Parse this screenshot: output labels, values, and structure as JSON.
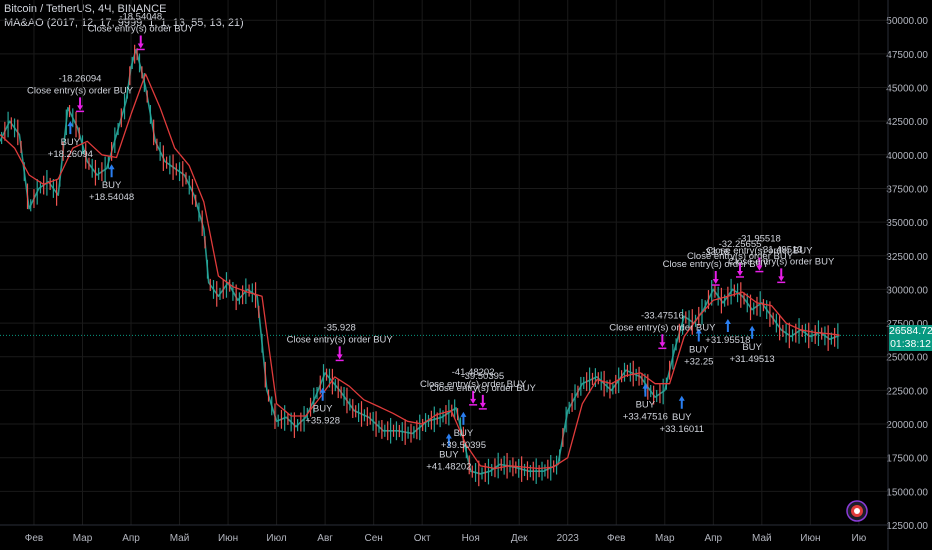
{
  "header": {
    "symbol": "Bitcoin / TetherUS, 4Ч, BINANCE",
    "indicator": "MA&AO (2017, 12, 17, 9999, 1, 1, 13, 55, 13, 21)"
  },
  "price_badge": {
    "price": "26584.72",
    "countdown": "01:38:12",
    "color": "#089981"
  },
  "colors": {
    "ma_line": "#e03b3b",
    "buy_arrow": "#2a7ef0",
    "close_arrow": "#e81ee8",
    "text": "#d1d4dc",
    "grid": "#1a1a1a"
  },
  "chart_data": {
    "type": "line",
    "title": "",
    "xlabel": "",
    "ylabel": "",
    "ylim": [
      12500,
      51500
    ],
    "y_ticks": [
      12500,
      15000,
      17500,
      20000,
      22500,
      25000,
      27500,
      30000,
      32500,
      35000,
      37500,
      40000,
      42500,
      45000,
      47500,
      50000
    ],
    "y_tick_labels": [
      "12500.00",
      "15000.00",
      "17500.00",
      "20000.00",
      "22500.00",
      "25000.00",
      "27500.00",
      "30000.00",
      "32500.00",
      "35000.00",
      "37500.00",
      "40000.00",
      "42500.00",
      "45000.00",
      "47500.00",
      "50000.00"
    ],
    "x_tick_labels": [
      "Фев",
      "Мар",
      "Апр",
      "Май",
      "Июн",
      "Июл",
      "Авг",
      "Сен",
      "Окт",
      "Ноя",
      "Дек",
      "2023",
      "Фев",
      "Мар",
      "Апр",
      "Май",
      "Июн",
      "Ию"
    ],
    "x_tick_months": [
      1,
      2,
      3,
      4,
      5,
      6,
      7,
      8,
      9,
      10,
      11,
      12,
      13,
      14,
      15,
      16,
      17,
      18
    ],
    "x_range_months": [
      0.3,
      18.6
    ],
    "last_price": 26584.72,
    "price_series": {
      "month": [
        0.3,
        0.5,
        0.7,
        0.9,
        1.1,
        1.3,
        1.5,
        1.7,
        1.9,
        2.1,
        2.3,
        2.5,
        2.7,
        2.9,
        3.0,
        3.1,
        3.2,
        3.3,
        3.5,
        3.7,
        3.9,
        4.1,
        4.3,
        4.5,
        4.6,
        4.8,
        5.0,
        5.2,
        5.4,
        5.6,
        5.8,
        6.0,
        6.2,
        6.4,
        6.6,
        6.8,
        7.0,
        7.3,
        7.6,
        7.9,
        8.2,
        8.5,
        8.8,
        9.1,
        9.4,
        9.7,
        10.0,
        10.2,
        10.4,
        10.6,
        10.9,
        11.2,
        11.5,
        11.8,
        12.0,
        12.3,
        12.6,
        12.9,
        13.2,
        13.5,
        13.8,
        14.0,
        14.2,
        14.4,
        14.6,
        14.8,
        15.0,
        15.2,
        15.4,
        15.6,
        15.8,
        16.0,
        16.2,
        16.4,
        16.6,
        16.8,
        17.0,
        17.2,
        17.4,
        17.6
      ],
      "price": [
        41000,
        42500,
        41500,
        36000,
        37500,
        38000,
        37000,
        43500,
        42000,
        39500,
        38500,
        39000,
        41500,
        44000,
        46500,
        47800,
        46500,
        45000,
        41000,
        39500,
        39000,
        38500,
        37000,
        34500,
        30500,
        29500,
        30500,
        29200,
        30000,
        29500,
        22500,
        20200,
        20500,
        19800,
        20500,
        22000,
        23800,
        22500,
        21000,
        20500,
        19500,
        19500,
        19300,
        20200,
        20500,
        21200,
        16500,
        16300,
        16500,
        17000,
        16800,
        16500,
        16500,
        17000,
        21000,
        23000,
        23500,
        22500,
        24000,
        23500,
        22000,
        22500,
        25500,
        28000,
        27500,
        28500,
        30000,
        29000,
        30000,
        29500,
        28500,
        29000,
        28000,
        27000,
        26500,
        27000,
        26500,
        26800,
        26300,
        26584.72
      ]
    },
    "ma_series": {
      "month": [
        0.3,
        0.6,
        0.9,
        1.2,
        1.5,
        1.8,
        2.1,
        2.4,
        2.7,
        3.0,
        3.3,
        3.6,
        3.9,
        4.2,
        4.5,
        4.8,
        5.1,
        5.4,
        5.7,
        6.0,
        6.3,
        6.6,
        6.9,
        7.2,
        7.5,
        7.8,
        8.1,
        8.4,
        8.7,
        9.0,
        9.3,
        9.6,
        9.9,
        10.2,
        10.5,
        10.8,
        11.1,
        11.4,
        11.7,
        12.0,
        12.3,
        12.6,
        12.9,
        13.2,
        13.5,
        13.8,
        14.1,
        14.4,
        14.7,
        15.0,
        15.3,
        15.6,
        15.9,
        16.2,
        16.5,
        16.8,
        17.1,
        17.4,
        17.6
      ],
      "value": [
        41500,
        40500,
        38500,
        37800,
        38200,
        40500,
        41000,
        40000,
        39800,
        43000,
        46000,
        43500,
        40500,
        39200,
        36500,
        31000,
        30200,
        29800,
        29500,
        21500,
        20600,
        20600,
        22000,
        23500,
        22800,
        21800,
        21300,
        20800,
        20200,
        20000,
        20700,
        21000,
        18500,
        16900,
        16700,
        16900,
        16800,
        16700,
        16800,
        17500,
        21500,
        23300,
        23000,
        23600,
        23800,
        23000,
        23000,
        26500,
        28000,
        29200,
        29500,
        29800,
        29000,
        28800,
        27500,
        27000,
        26800,
        26700,
        26600
      ]
    },
    "signals": {
      "buy": [
        {
          "month": 1.75,
          "price": 42500,
          "labels": [
            "BUY",
            "+18.26094"
          ],
          "label_side": "below"
        },
        {
          "month": 2.6,
          "price": 39300,
          "labels": [
            "BUY",
            "+18.54048"
          ],
          "label_side": "below"
        },
        {
          "month": 6.95,
          "price": 22700,
          "labels": [
            "BUY",
            "+35.928"
          ],
          "label_side": "below"
        },
        {
          "month": 9.55,
          "price": 19300,
          "labels": [
            "BUY",
            "+41.48202"
          ],
          "label_side": "below"
        },
        {
          "month": 9.85,
          "price": 20900,
          "labels": [
            "BUY",
            "+39.50395"
          ],
          "label_side": "below"
        },
        {
          "month": 13.6,
          "price": 23000,
          "labels": [
            "BUY",
            "+33.47516"
          ],
          "label_side": "below"
        },
        {
          "month": 14.35,
          "price": 22100,
          "labels": [
            "BUY",
            "+33.16011"
          ],
          "label_side": "below"
        },
        {
          "month": 14.7,
          "price": 27100,
          "labels": [
            "BUY",
            "+32.25"
          ],
          "label_side": "below"
        },
        {
          "month": 15.3,
          "price": 27800,
          "labels": [
            "+31.95518"
          ],
          "label_side": "below"
        },
        {
          "month": 15.8,
          "price": 27300,
          "labels": [
            "BUY",
            "+31.49513"
          ],
          "label_side": "below"
        }
      ],
      "close": [
        {
          "month": 1.95,
          "price": 43300,
          "labels": [
            "-18.26094",
            "Close entry(s) order BUY"
          ],
          "label_side": "above"
        },
        {
          "month": 3.2,
          "price": 47900,
          "labels": [
            "-18.54048",
            "Close entry(s) order BUY"
          ],
          "label_side": "above"
        },
        {
          "month": 7.3,
          "price": 24800,
          "labels": [
            "-35.928",
            "Close entry(s) order BUY"
          ],
          "label_side": "above"
        },
        {
          "month": 10.05,
          "price": 21500,
          "labels": [
            "-41.48202",
            "Close entry(s) order BUY"
          ],
          "label_side": "above"
        },
        {
          "month": 10.25,
          "price": 21200,
          "labels": [
            "-39.50395",
            "Close entry(s) order BUY"
          ],
          "label_side": "above"
        },
        {
          "month": 13.95,
          "price": 25700,
          "labels": [
            "-33.47516",
            "Close entry(s) order BUY"
          ],
          "label_side": "above"
        },
        {
          "month": 15.05,
          "price": 30400,
          "labels": [
            "-33.16",
            "Close entry(s) order BUY"
          ],
          "label_side": "above"
        },
        {
          "month": 15.55,
          "price": 31000,
          "labels": [
            "-32.25655",
            "Close entry(s) order BUY"
          ],
          "label_side": "above"
        },
        {
          "month": 15.95,
          "price": 31400,
          "labels": [
            "-31.95518",
            "Close entry(s) order BUY"
          ],
          "label_side": "above"
        },
        {
          "month": 16.4,
          "price": 30600,
          "labels": [
            "-31.49513",
            "Close entry(s) order BUY"
          ],
          "label_side": "above"
        }
      ]
    }
  }
}
